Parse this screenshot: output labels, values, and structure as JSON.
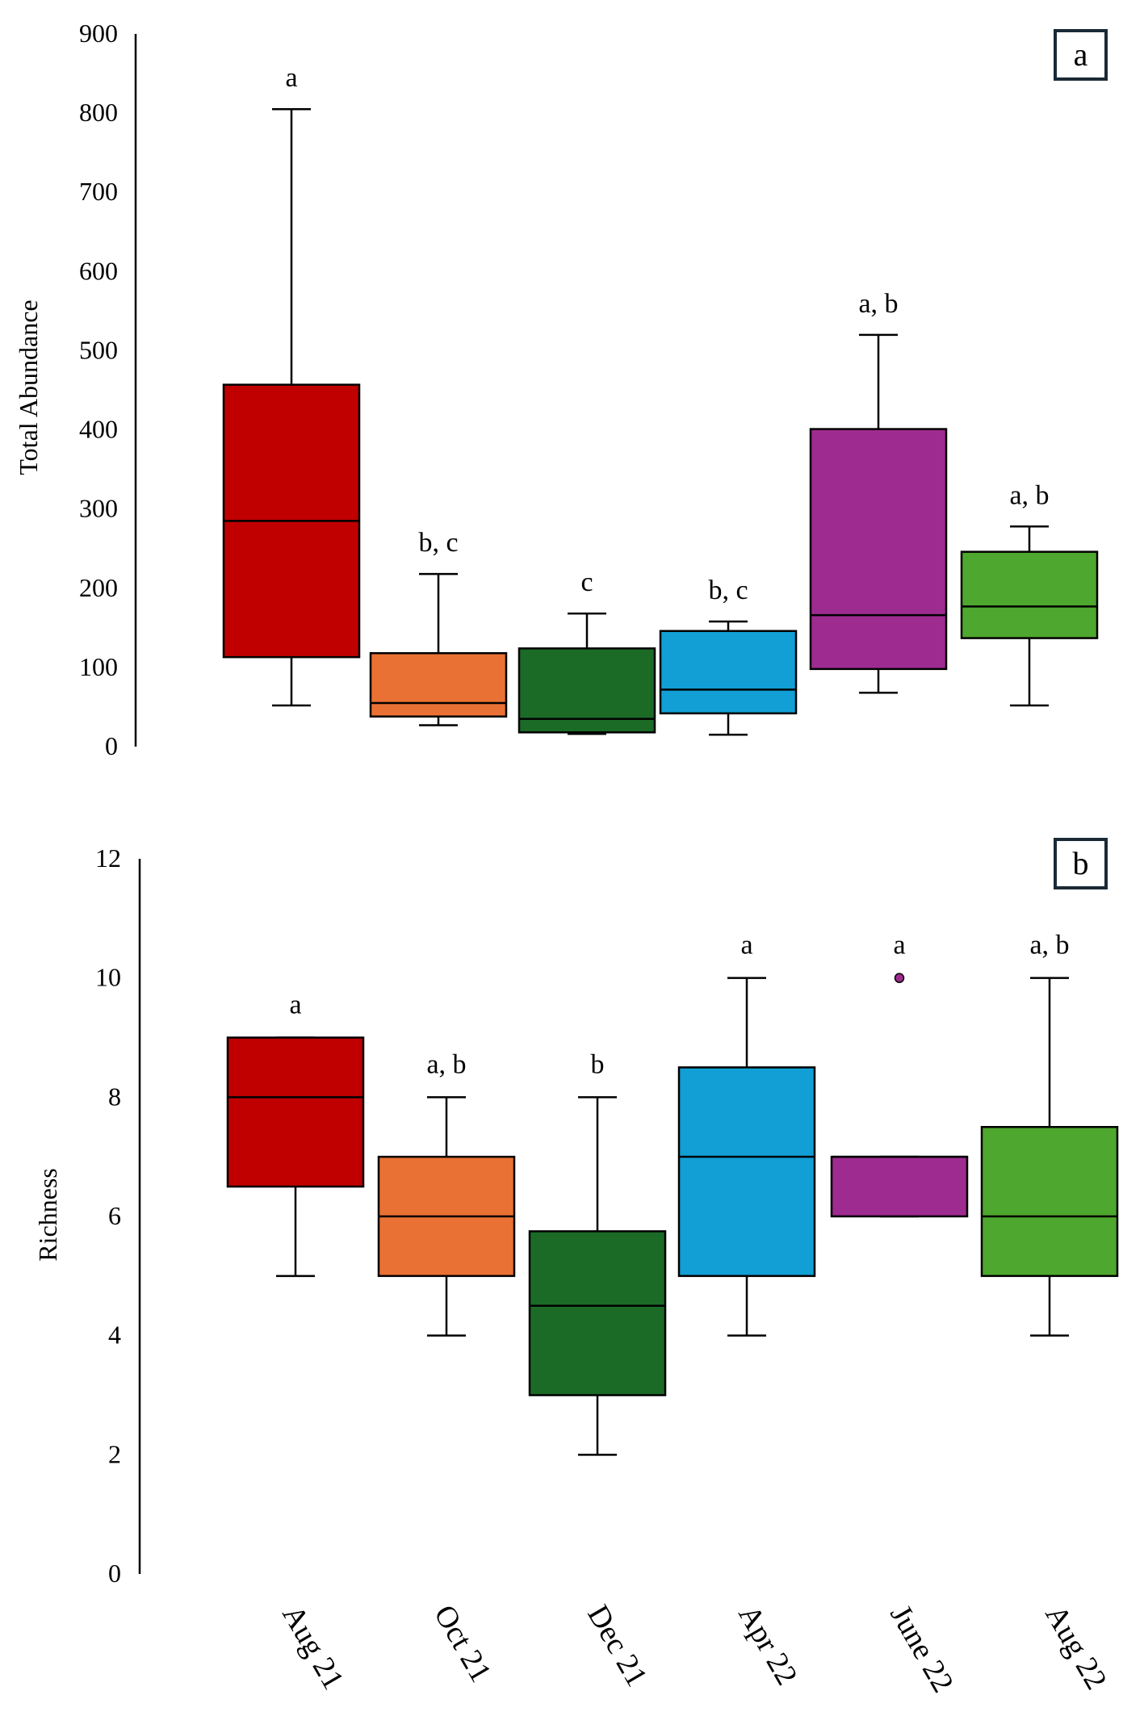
{
  "figure": {
    "categories": [
      "Aug 21",
      "Oct 21",
      "Dec 21",
      "Apr 22",
      "June 22",
      "Aug 22"
    ]
  },
  "chart_data": [
    {
      "type": "box",
      "panel": "a",
      "ylabel": "Total Abundance",
      "xlabel": "",
      "ylim": [
        0,
        900
      ],
      "yticks": [
        "0",
        "100",
        "200",
        "300",
        "400",
        "500",
        "600",
        "700",
        "800",
        "900"
      ],
      "grid": false,
      "categories": [
        "Aug 21",
        "Oct 21",
        "Dec 21",
        "Apr 22",
        "June 22",
        "Aug 22"
      ],
      "boxes": [
        {
          "category": "Aug 21",
          "min": 52,
          "q1": 113,
          "median": 285,
          "q3": 457,
          "max": 805,
          "label": "a",
          "color": "#c00000",
          "outliers": []
        },
        {
          "category": "Oct 21",
          "min": 27,
          "q1": 38,
          "median": 55,
          "q3": 118,
          "max": 218,
          "label": "b, c",
          "color": "#ea7134",
          "outliers": []
        },
        {
          "category": "Dec 21",
          "min": 16,
          "q1": 18,
          "median": 35,
          "q3": 124,
          "max": 168,
          "label": "c",
          "color": "#1b6b27",
          "outliers": []
        },
        {
          "category": "Apr 22",
          "min": 15,
          "q1": 42,
          "median": 72,
          "q3": 146,
          "max": 158,
          "label": "b, c",
          "color": "#119fd6",
          "outliers": []
        },
        {
          "category": "June 22",
          "min": 68,
          "q1": 98,
          "median": 166,
          "q3": 401,
          "max": 520,
          "label": "a, b",
          "color": "#9e2b8f",
          "outliers": []
        },
        {
          "category": "Aug 22",
          "min": 52,
          "q1": 137,
          "median": 177,
          "q3": 246,
          "max": 278,
          "label": "a, b",
          "color": "#4ea72e",
          "outliers": []
        }
      ]
    },
    {
      "type": "box",
      "panel": "b",
      "ylabel": "Richness",
      "xlabel": "",
      "ylim": [
        0,
        12
      ],
      "yticks": [
        "0",
        "2",
        "4",
        "6",
        "8",
        "10",
        "12"
      ],
      "grid": false,
      "categories": [
        "Aug 21",
        "Oct 21",
        "Dec 21",
        "Apr 22",
        "June 22",
        "Aug 22"
      ],
      "boxes": [
        {
          "category": "Aug 21",
          "min": 5,
          "q1": 6.5,
          "median": 8,
          "q3": 9,
          "max": 9,
          "label": "a",
          "color": "#c00000",
          "outliers": []
        },
        {
          "category": "Oct 21",
          "min": 4,
          "q1": 5,
          "median": 6,
          "q3": 7,
          "max": 8,
          "label": "a, b",
          "color": "#ea7134",
          "outliers": []
        },
        {
          "category": "Dec 21",
          "min": 2,
          "q1": 3,
          "median": 4.5,
          "q3": 5.75,
          "max": 8,
          "label": "b",
          "color": "#1b6b27",
          "outliers": []
        },
        {
          "category": "Apr 22",
          "min": 4,
          "q1": 5,
          "median": 7,
          "q3": 8.5,
          "max": 10,
          "label": "a",
          "color": "#119fd6",
          "outliers": []
        },
        {
          "category": "June 22",
          "min": 6,
          "q1": 6,
          "median": 7,
          "q3": 7,
          "max": 7,
          "label": "a",
          "color": "#9e2b8f",
          "outliers": [
            10
          ]
        },
        {
          "category": "Aug 22",
          "min": 4,
          "q1": 5,
          "median": 6,
          "q3": 7.5,
          "max": 10,
          "label": "a, b",
          "color": "#4ea72e",
          "outliers": []
        }
      ]
    }
  ]
}
